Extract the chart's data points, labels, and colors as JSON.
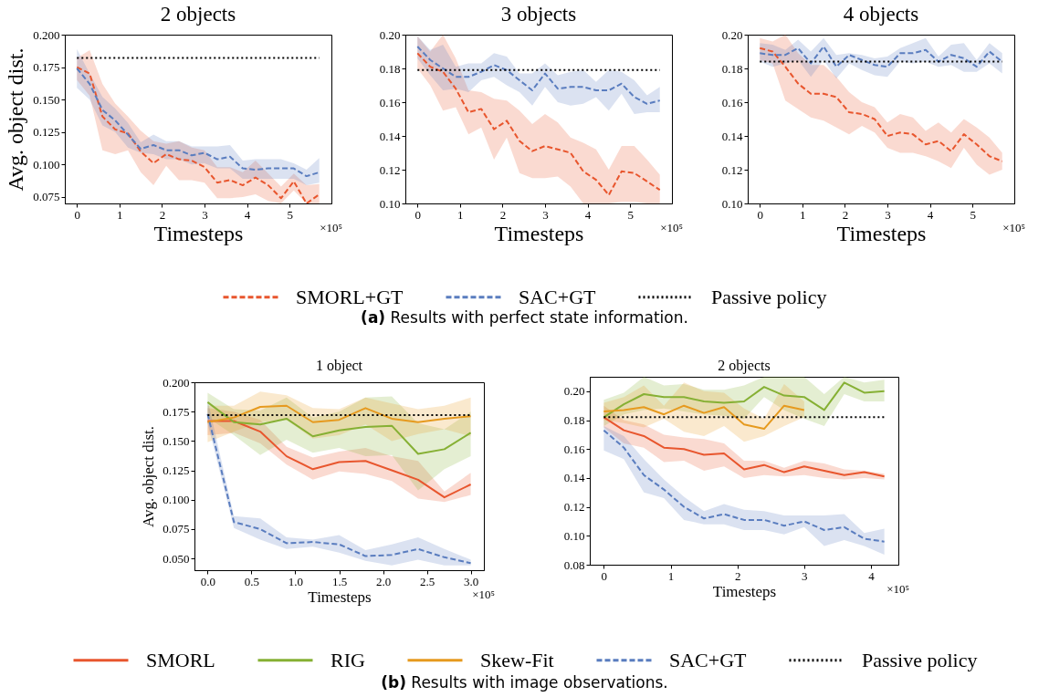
{
  "chart_data": [
    {
      "type": "line",
      "title": "2 objects",
      "xlabel": "Timesteps",
      "ylabel": "Avg. object dist.",
      "legend": "bottom",
      "annotations": [
        "×10⁵"
      ],
      "x": [
        0,
        0.3,
        0.6,
        0.9,
        1.2,
        1.5,
        1.8,
        2.1,
        2.4,
        2.7,
        3.0,
        3.3,
        3.6,
        3.9,
        4.2,
        4.5,
        4.8,
        5.1,
        5.4,
        5.7
      ],
      "xlim": [
        -0.285,
        5.985
      ],
      "xticks": [
        0,
        1,
        2,
        3,
        4,
        5
      ],
      "ylim": [
        0.07,
        0.2
      ],
      "yticks": [
        {
          "value": 0.075,
          "label": "0.075"
        },
        {
          "value": 0.1,
          "label": "0.100"
        },
        {
          "value": 0.125,
          "label": "0.125"
        },
        {
          "value": 0.15,
          "label": "0.150"
        },
        {
          "value": 0.175,
          "label": "0.175"
        },
        {
          "value": 0.2,
          "label": "0.200"
        }
      ],
      "series": [
        {
          "name": "SMORL+GT",
          "color": "#e8562e",
          "line_style": "dashed",
          "values": [
            0.175,
            0.17,
            0.137,
            0.127,
            0.124,
            0.11,
            0.101,
            0.108,
            0.104,
            0.103,
            0.098,
            0.086,
            0.088,
            0.084,
            0.09,
            0.084,
            0.074,
            0.087,
            0.07,
            0.077
          ],
          "lower": [
            0.165,
            0.153,
            0.111,
            0.108,
            0.111,
            0.094,
            0.084,
            0.099,
            0.088,
            0.088,
            0.086,
            0.074,
            0.074,
            0.075,
            0.077,
            0.072,
            0.07,
            0.08,
            0.07,
            0.07
          ],
          "upper": [
            0.182,
            0.188,
            0.162,
            0.147,
            0.137,
            0.126,
            0.118,
            0.116,
            0.118,
            0.113,
            0.111,
            0.098,
            0.098,
            0.094,
            0.103,
            0.093,
            0.083,
            0.093,
            0.084,
            0.085
          ]
        },
        {
          "name": "SAC+GT",
          "color": "#5a7dbf",
          "line_style": "dashed",
          "values": [
            0.174,
            0.162,
            0.142,
            0.134,
            0.123,
            0.112,
            0.115,
            0.111,
            0.111,
            0.107,
            0.109,
            0.104,
            0.106,
            0.097,
            0.096,
            0.097,
            0.097,
            0.097,
            0.091,
            0.094
          ],
          "lower": [
            0.159,
            0.15,
            0.13,
            0.125,
            0.113,
            0.109,
            0.108,
            0.104,
            0.104,
            0.1,
            0.101,
            0.097,
            0.097,
            0.089,
            0.089,
            0.089,
            0.089,
            0.089,
            0.084,
            0.086
          ],
          "upper": [
            0.189,
            0.17,
            0.152,
            0.143,
            0.132,
            0.117,
            0.123,
            0.118,
            0.118,
            0.114,
            0.114,
            0.114,
            0.115,
            0.103,
            0.104,
            0.104,
            0.104,
            0.101,
            0.096,
            0.105
          ]
        },
        {
          "name": "Passive policy",
          "color": "#000000",
          "line_style": "dotted",
          "x": [
            0,
            5.7
          ],
          "values": [
            0.182,
            0.182
          ]
        }
      ]
    },
    {
      "type": "line",
      "title": "3 objects",
      "xlabel": "Timesteps",
      "legend": "bottom",
      "annotations": [
        "×10⁵"
      ],
      "x": [
        0,
        0.3,
        0.6,
        0.9,
        1.2,
        1.5,
        1.8,
        2.1,
        2.4,
        2.7,
        3.0,
        3.3,
        3.6,
        3.9,
        4.2,
        4.5,
        4.8,
        5.1,
        5.4,
        5.7
      ],
      "xlim": [
        -0.285,
        5.985
      ],
      "xticks": [
        0,
        1,
        2,
        3,
        4,
        5
      ],
      "ylim": [
        0.1,
        0.2
      ],
      "yticks": [
        {
          "value": 0.1,
          "label": "0.10"
        },
        {
          "value": 0.12,
          "label": "0.12"
        },
        {
          "value": 0.14,
          "label": "0.14"
        },
        {
          "value": 0.16,
          "label": "0.16"
        },
        {
          "value": 0.18,
          "label": "0.18"
        },
        {
          "value": 0.2,
          "label": "0.20"
        }
      ],
      "series": [
        {
          "name": "SMORL+GT",
          "color": "#e8562e",
          "line_style": "dashed",
          "values": [
            0.189,
            0.181,
            0.178,
            0.168,
            0.154,
            0.156,
            0.144,
            0.149,
            0.137,
            0.131,
            0.134,
            0.132,
            0.13,
            0.119,
            0.114,
            0.105,
            0.119,
            0.118,
            0.113,
            0.108
          ],
          "lower": [
            0.18,
            0.17,
            0.155,
            0.157,
            0.141,
            0.145,
            0.126,
            0.139,
            0.118,
            0.115,
            0.115,
            0.116,
            0.11,
            0.1,
            0.1,
            0.1,
            0.101,
            0.101,
            0.1,
            0.1
          ],
          "upper": [
            0.199,
            0.19,
            0.2,
            0.186,
            0.167,
            0.166,
            0.162,
            0.161,
            0.155,
            0.147,
            0.153,
            0.148,
            0.139,
            0.136,
            0.132,
            0.12,
            0.134,
            0.134,
            0.126,
            0.117
          ]
        },
        {
          "name": "SAC+GT",
          "color": "#5a7dbf",
          "line_style": "dashed",
          "values": [
            0.193,
            0.185,
            0.18,
            0.175,
            0.175,
            0.178,
            0.182,
            0.179,
            0.173,
            0.167,
            0.177,
            0.168,
            0.169,
            0.169,
            0.167,
            0.167,
            0.171,
            0.163,
            0.159,
            0.161
          ],
          "lower": [
            0.186,
            0.176,
            0.167,
            0.168,
            0.166,
            0.173,
            0.175,
            0.17,
            0.166,
            0.158,
            0.169,
            0.16,
            0.158,
            0.159,
            0.163,
            0.155,
            0.165,
            0.153,
            0.154,
            0.154
          ],
          "upper": [
            0.199,
            0.191,
            0.194,
            0.181,
            0.183,
            0.183,
            0.189,
            0.187,
            0.177,
            0.177,
            0.183,
            0.176,
            0.178,
            0.179,
            0.172,
            0.179,
            0.178,
            0.173,
            0.164,
            0.169
          ]
        },
        {
          "name": "Passive policy",
          "color": "#000000",
          "line_style": "dotted",
          "x": [
            0,
            5.7
          ],
          "values": [
            0.179,
            0.179
          ]
        }
      ]
    },
    {
      "type": "line",
      "title": "4 objects",
      "xlabel": "Timesteps",
      "legend": "bottom",
      "annotations": [
        "×10⁵",
        "(a) Results with perfect state information."
      ],
      "x": [
        0,
        0.3,
        0.6,
        0.9,
        1.2,
        1.5,
        1.8,
        2.1,
        2.4,
        2.7,
        3.0,
        3.3,
        3.6,
        3.9,
        4.2,
        4.5,
        4.8,
        5.1,
        5.4,
        5.7
      ],
      "xlim": [
        -0.285,
        5.985
      ],
      "xticks": [
        0,
        1,
        2,
        3,
        4,
        5
      ],
      "ylim": [
        0.1,
        0.2
      ],
      "yticks": [
        {
          "value": 0.1,
          "label": "0.10"
        },
        {
          "value": 0.12,
          "label": "0.12"
        },
        {
          "value": 0.14,
          "label": "0.14"
        },
        {
          "value": 0.16,
          "label": "0.16"
        },
        {
          "value": 0.18,
          "label": "0.18"
        },
        {
          "value": 0.2,
          "label": "0.20"
        }
      ],
      "series": [
        {
          "name": "SMORL+GT",
          "color": "#e8562e",
          "line_style": "dashed",
          "values": [
            0.192,
            0.19,
            0.181,
            0.171,
            0.165,
            0.165,
            0.163,
            0.154,
            0.153,
            0.15,
            0.14,
            0.142,
            0.141,
            0.135,
            0.137,
            0.131,
            0.141,
            0.135,
            0.128,
            0.125
          ],
          "lower": [
            0.185,
            0.183,
            0.161,
            0.156,
            0.151,
            0.149,
            0.145,
            0.141,
            0.146,
            0.142,
            0.133,
            0.13,
            0.13,
            0.128,
            0.125,
            0.121,
            0.133,
            0.123,
            0.117,
            0.12
          ],
          "upper": [
            0.198,
            0.196,
            0.2,
            0.189,
            0.182,
            0.182,
            0.175,
            0.166,
            0.16,
            0.157,
            0.148,
            0.153,
            0.151,
            0.143,
            0.148,
            0.142,
            0.15,
            0.145,
            0.139,
            0.13
          ]
        },
        {
          "name": "SAC+GT",
          "color": "#5a7dbf",
          "line_style": "dashed",
          "values": [
            0.189,
            0.188,
            0.188,
            0.192,
            0.183,
            0.193,
            0.181,
            0.188,
            0.185,
            0.182,
            0.181,
            0.189,
            0.189,
            0.191,
            0.184,
            0.188,
            0.186,
            0.181,
            0.19,
            0.184
          ],
          "lower": [
            0.184,
            0.181,
            0.183,
            0.185,
            0.175,
            0.185,
            0.174,
            0.183,
            0.179,
            0.176,
            0.175,
            0.184,
            0.183,
            0.184,
            0.181,
            0.182,
            0.178,
            0.178,
            0.183,
            0.177
          ],
          "upper": [
            0.195,
            0.194,
            0.191,
            0.197,
            0.19,
            0.198,
            0.188,
            0.189,
            0.188,
            0.186,
            0.187,
            0.192,
            0.195,
            0.198,
            0.187,
            0.194,
            0.195,
            0.185,
            0.195,
            0.189
          ]
        },
        {
          "name": "Passive policy",
          "color": "#000000",
          "line_style": "dotted",
          "x": [
            0,
            5.7
          ],
          "values": [
            0.184,
            0.184
          ]
        }
      ]
    },
    {
      "type": "line",
      "title": "1 object",
      "xlabel": "Timesteps",
      "ylabel": "Avg. object dist.",
      "legend": "bottom",
      "annotations": [
        "×10⁵"
      ],
      "x": [
        0,
        0.3,
        0.6,
        0.9,
        1.2,
        1.5,
        1.8,
        2.1,
        2.4,
        2.7,
        3.0
      ],
      "xlim": [
        -0.15,
        3.15
      ],
      "xticks": [
        {
          "value": 0,
          "label": "0.0"
        },
        {
          "value": 0.5,
          "label": "0.5"
        },
        {
          "value": 1,
          "label": "1.0"
        },
        {
          "value": 1.5,
          "label": "1.5"
        },
        {
          "value": 2,
          "label": "2.0"
        },
        {
          "value": 2.5,
          "label": "2.5"
        },
        {
          "value": 3,
          "label": "3.0"
        }
      ],
      "ylim": [
        0.04,
        0.2
      ],
      "yticks": [
        {
          "value": 0.05,
          "label": "0.050"
        },
        {
          "value": 0.075,
          "label": "0.075"
        },
        {
          "value": 0.1,
          "label": "0.100"
        },
        {
          "value": 0.125,
          "label": "0.125"
        },
        {
          "value": 0.15,
          "label": "0.150"
        },
        {
          "value": 0.175,
          "label": "0.175"
        },
        {
          "value": 0.2,
          "label": "0.200"
        }
      ],
      "series": [
        {
          "name": "SMORL",
          "color": "#e8562e",
          "line_style": "solid",
          "values": [
            0.167,
            0.167,
            0.158,
            0.137,
            0.126,
            0.132,
            0.133,
            0.125,
            0.117,
            0.102,
            0.113
          ],
          "lower": [
            0.155,
            0.157,
            0.148,
            0.13,
            0.117,
            0.124,
            0.122,
            0.116,
            0.101,
            0.098,
            0.104
          ],
          "upper": [
            0.178,
            0.175,
            0.168,
            0.145,
            0.136,
            0.141,
            0.144,
            0.137,
            0.133,
            0.107,
            0.123
          ]
        },
        {
          "name": "RIG",
          "color": "#86b034",
          "line_style": "solid",
          "values": [
            0.183,
            0.166,
            0.164,
            0.169,
            0.154,
            0.159,
            0.162,
            0.163,
            0.139,
            0.143,
            0.157
          ],
          "lower": [
            0.17,
            0.155,
            0.138,
            0.151,
            0.14,
            0.144,
            0.137,
            0.138,
            0.108,
            0.126,
            0.137
          ],
          "upper": [
            0.191,
            0.177,
            0.176,
            0.187,
            0.17,
            0.175,
            0.187,
            0.188,
            0.165,
            0.16,
            0.175
          ]
        },
        {
          "name": "Skew-Fit",
          "color": "#e69a1f",
          "line_style": "solid",
          "values": [
            0.166,
            0.17,
            0.179,
            0.18,
            0.166,
            0.168,
            0.178,
            0.169,
            0.166,
            0.169,
            0.171
          ],
          "lower": [
            0.149,
            0.158,
            0.166,
            0.168,
            0.152,
            0.155,
            0.164,
            0.15,
            0.156,
            0.16,
            0.154
          ],
          "upper": [
            0.18,
            0.18,
            0.192,
            0.189,
            0.178,
            0.177,
            0.187,
            0.182,
            0.177,
            0.18,
            0.187
          ]
        },
        {
          "name": "SAC+GT",
          "color": "#5a7dbf",
          "line_style": "dashed",
          "values": [
            0.173,
            0.081,
            0.075,
            0.063,
            0.064,
            0.062,
            0.052,
            0.053,
            0.058,
            0.051,
            0.046
          ],
          "lower": [
            0.165,
            0.076,
            0.066,
            0.058,
            0.06,
            0.055,
            0.048,
            0.044,
            0.049,
            0.044,
            0.044
          ],
          "upper": [
            0.185,
            0.086,
            0.084,
            0.068,
            0.066,
            0.07,
            0.057,
            0.062,
            0.068,
            0.058,
            0.049
          ]
        },
        {
          "name": "Passive policy",
          "color": "#000000",
          "line_style": "dotted",
          "x": [
            0,
            3.0
          ],
          "values": [
            0.172,
            0.172
          ]
        }
      ]
    },
    {
      "type": "line",
      "title": "2 objects",
      "xlabel": "Timesteps",
      "legend": "bottom",
      "annotations": [
        "×10⁵",
        "(b) Results with image observations."
      ],
      "x": [
        0,
        0.3,
        0.6,
        0.9,
        1.2,
        1.5,
        1.8,
        2.1,
        2.4,
        2.7,
        3.0,
        3.3,
        3.6,
        3.9,
        4.2
      ],
      "xlim": [
        -0.21,
        4.41
      ],
      "xticks": [
        0,
        1,
        2,
        3,
        4
      ],
      "ylim": [
        0.08,
        0.21
      ],
      "yticks": [
        {
          "value": 0.08,
          "label": "0.08"
        },
        {
          "value": 0.1,
          "label": "0.10"
        },
        {
          "value": 0.12,
          "label": "0.12"
        },
        {
          "value": 0.14,
          "label": "0.14"
        },
        {
          "value": 0.16,
          "label": "0.16"
        },
        {
          "value": 0.18,
          "label": "0.18"
        },
        {
          "value": 0.2,
          "label": "0.20"
        }
      ],
      "series": [
        {
          "name": "SMORL",
          "color": "#e8562e",
          "line_style": "solid",
          "values": [
            0.182,
            0.173,
            0.169,
            0.161,
            0.16,
            0.156,
            0.157,
            0.146,
            0.149,
            0.144,
            0.148,
            0.145,
            0.142,
            0.144,
            0.141
          ],
          "lower": [
            0.175,
            0.164,
            0.161,
            0.151,
            0.152,
            0.145,
            0.148,
            0.14,
            0.142,
            0.141,
            0.142,
            0.14,
            0.139,
            0.14,
            0.139
          ],
          "upper": [
            0.19,
            0.18,
            0.177,
            0.17,
            0.168,
            0.167,
            0.164,
            0.152,
            0.152,
            0.147,
            0.152,
            0.15,
            0.146,
            0.145,
            0.143
          ]
        },
        {
          "name": "RIG",
          "color": "#86b034",
          "line_style": "solid",
          "values": [
            0.182,
            0.191,
            0.198,
            0.196,
            0.196,
            0.193,
            0.192,
            0.193,
            0.203,
            0.197,
            0.196,
            0.187,
            0.206,
            0.199,
            0.2
          ],
          "lower": [
            0.176,
            0.184,
            0.187,
            0.188,
            0.186,
            0.184,
            0.183,
            0.181,
            0.196,
            0.187,
            0.181,
            0.176,
            0.198,
            0.193,
            0.193
          ],
          "upper": [
            0.194,
            0.199,
            0.21,
            0.204,
            0.205,
            0.201,
            0.201,
            0.204,
            0.21,
            0.21,
            0.21,
            0.198,
            0.21,
            0.206,
            0.208
          ]
        },
        {
          "name": "Skew-Fit",
          "color": "#e69a1f",
          "line_style": "solid",
          "x": [
            0,
            0.3,
            0.6,
            0.9,
            1.2,
            1.5,
            1.8,
            2.1,
            2.4,
            2.7,
            3.0
          ],
          "values": [
            0.186,
            0.187,
            0.189,
            0.184,
            0.19,
            0.185,
            0.189,
            0.177,
            0.174,
            0.19,
            0.187
          ],
          "lower": [
            0.18,
            0.178,
            0.175,
            0.181,
            0.172,
            0.169,
            0.176,
            0.165,
            0.169,
            0.176,
            0.182
          ],
          "upper": [
            0.192,
            0.196,
            0.204,
            0.19,
            0.206,
            0.2,
            0.199,
            0.188,
            0.181,
            0.205,
            0.193
          ]
        },
        {
          "name": "SAC+GT",
          "color": "#5a7dbf",
          "line_style": "dashed",
          "values": [
            0.173,
            0.161,
            0.142,
            0.132,
            0.12,
            0.112,
            0.115,
            0.111,
            0.111,
            0.107,
            0.11,
            0.104,
            0.106,
            0.098,
            0.096
          ],
          "lower": [
            0.159,
            0.153,
            0.13,
            0.126,
            0.111,
            0.108,
            0.108,
            0.104,
            0.104,
            0.101,
            0.106,
            0.093,
            0.097,
            0.093,
            0.087
          ],
          "upper": [
            0.176,
            0.169,
            0.153,
            0.139,
            0.127,
            0.117,
            0.122,
            0.118,
            0.117,
            0.114,
            0.114,
            0.114,
            0.115,
            0.102,
            0.105
          ]
        },
        {
          "name": "Passive policy",
          "color": "#000000",
          "line_style": "dotted",
          "x": [
            0,
            4.2
          ],
          "values": [
            0.182,
            0.182
          ]
        }
      ]
    }
  ]
}
